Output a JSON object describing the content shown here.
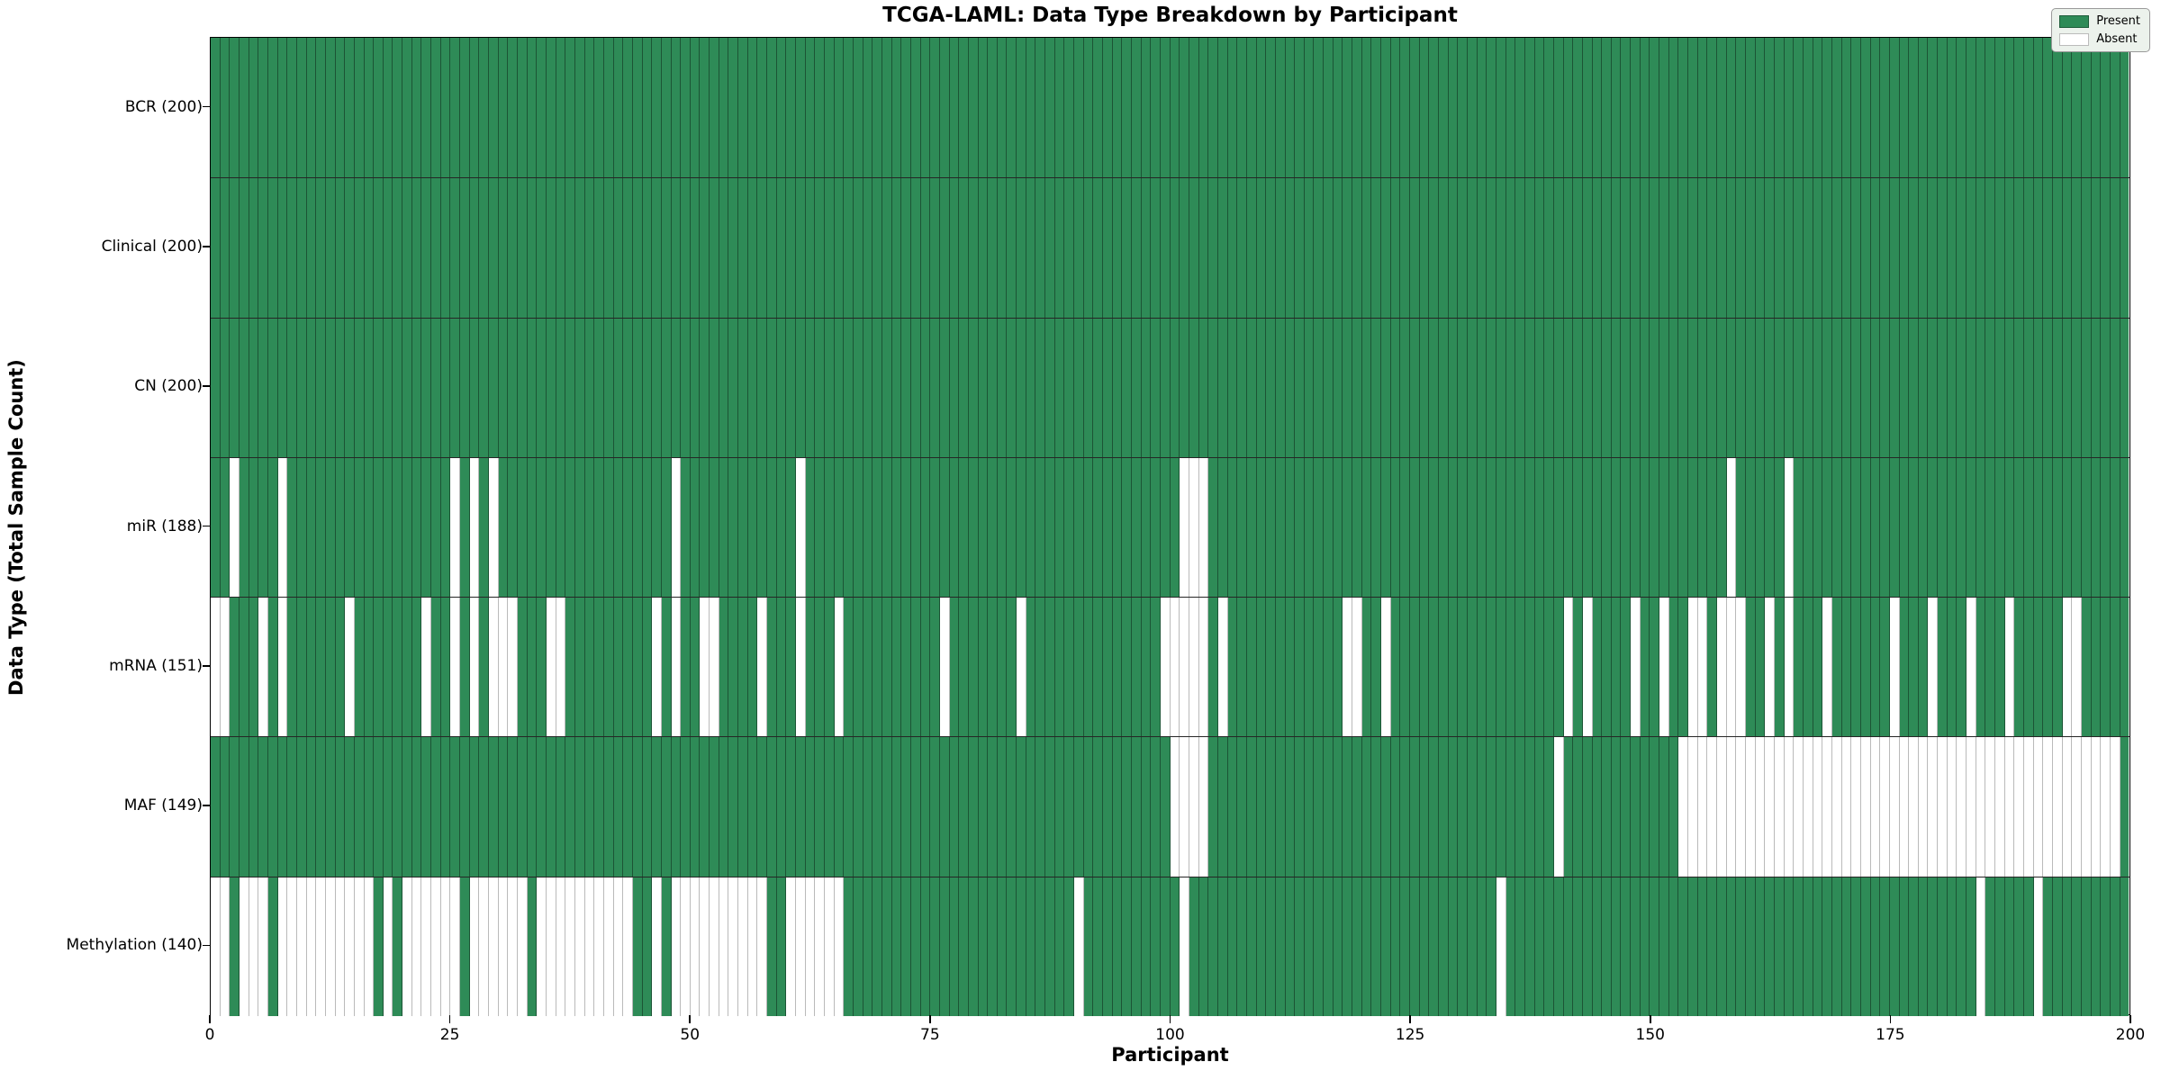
{
  "figure": {
    "title": "TCGA-LAML: Data Type Breakdown by Participant",
    "xlabel": "Participant",
    "ylabel": "Data Type (Total Sample Count)"
  },
  "legend": {
    "entries": [
      {
        "label": "Present",
        "color": "#2e8b57"
      },
      {
        "label": "Absent",
        "color": "#ffffff"
      }
    ]
  },
  "colors": {
    "present": "#2e8b57",
    "absent": "#ffffff",
    "legend_bg": "#ecf2ec"
  },
  "chart_data": {
    "type": "heatmap",
    "title": "TCGA-LAML: Data Type Breakdown by Participant",
    "xlabel": "Participant",
    "ylabel": "Data Type (Total Sample Count)",
    "x_range": [
      0,
      200
    ],
    "n_participants": 200,
    "x_ticks": [
      0,
      25,
      50,
      75,
      100,
      125,
      150,
      175,
      200
    ],
    "legend_position": "upper right",
    "grid": true,
    "rows": [
      {
        "name": "BCR",
        "total": 200,
        "label": "BCR (200)",
        "absent": []
      },
      {
        "name": "Clinical",
        "total": 200,
        "label": "Clinical (200)",
        "absent": []
      },
      {
        "name": "CN",
        "total": 200,
        "label": "CN (200)",
        "absent": []
      },
      {
        "name": "miR",
        "total": 188,
        "label": "miR (188)",
        "absent": [
          2,
          7,
          25,
          27,
          29,
          48,
          61,
          101,
          102,
          103,
          158,
          164
        ]
      },
      {
        "name": "mRNA",
        "total": 151,
        "label": "mRNA (151)",
        "absent": [
          0,
          1,
          5,
          7,
          14,
          22,
          25,
          27,
          29,
          30,
          31,
          35,
          36,
          46,
          48,
          51,
          52,
          57,
          61,
          65,
          76,
          84,
          99,
          100,
          101,
          102,
          103,
          105,
          118,
          119,
          122,
          141,
          143,
          148,
          151,
          154,
          155,
          157,
          158,
          159,
          162,
          164,
          168,
          175,
          179,
          183,
          187,
          193,
          194
        ]
      },
      {
        "name": "MAF",
        "total": 149,
        "label": "MAF (149)",
        "absent": [
          100,
          101,
          102,
          103,
          140,
          153,
          154,
          155,
          156,
          157,
          158,
          159,
          160,
          161,
          162,
          163,
          164,
          165,
          166,
          167,
          168,
          169,
          170,
          171,
          172,
          173,
          174,
          175,
          176,
          177,
          178,
          179,
          180,
          181,
          182,
          183,
          184,
          185,
          186,
          187,
          188,
          189,
          190,
          191,
          192,
          193,
          194,
          195,
          196,
          197,
          198
        ]
      },
      {
        "name": "Methylation",
        "total": 140,
        "label": "Methylation (140)",
        "absent": [
          0,
          1,
          3,
          4,
          5,
          7,
          8,
          9,
          10,
          11,
          12,
          13,
          14,
          15,
          16,
          18,
          20,
          21,
          22,
          23,
          24,
          25,
          27,
          28,
          29,
          30,
          31,
          32,
          34,
          35,
          36,
          37,
          38,
          39,
          40,
          41,
          42,
          43,
          46,
          48,
          49,
          50,
          51,
          52,
          53,
          54,
          55,
          56,
          57,
          60,
          61,
          62,
          63,
          64,
          65,
          90,
          101,
          134,
          184,
          190
        ]
      }
    ]
  }
}
